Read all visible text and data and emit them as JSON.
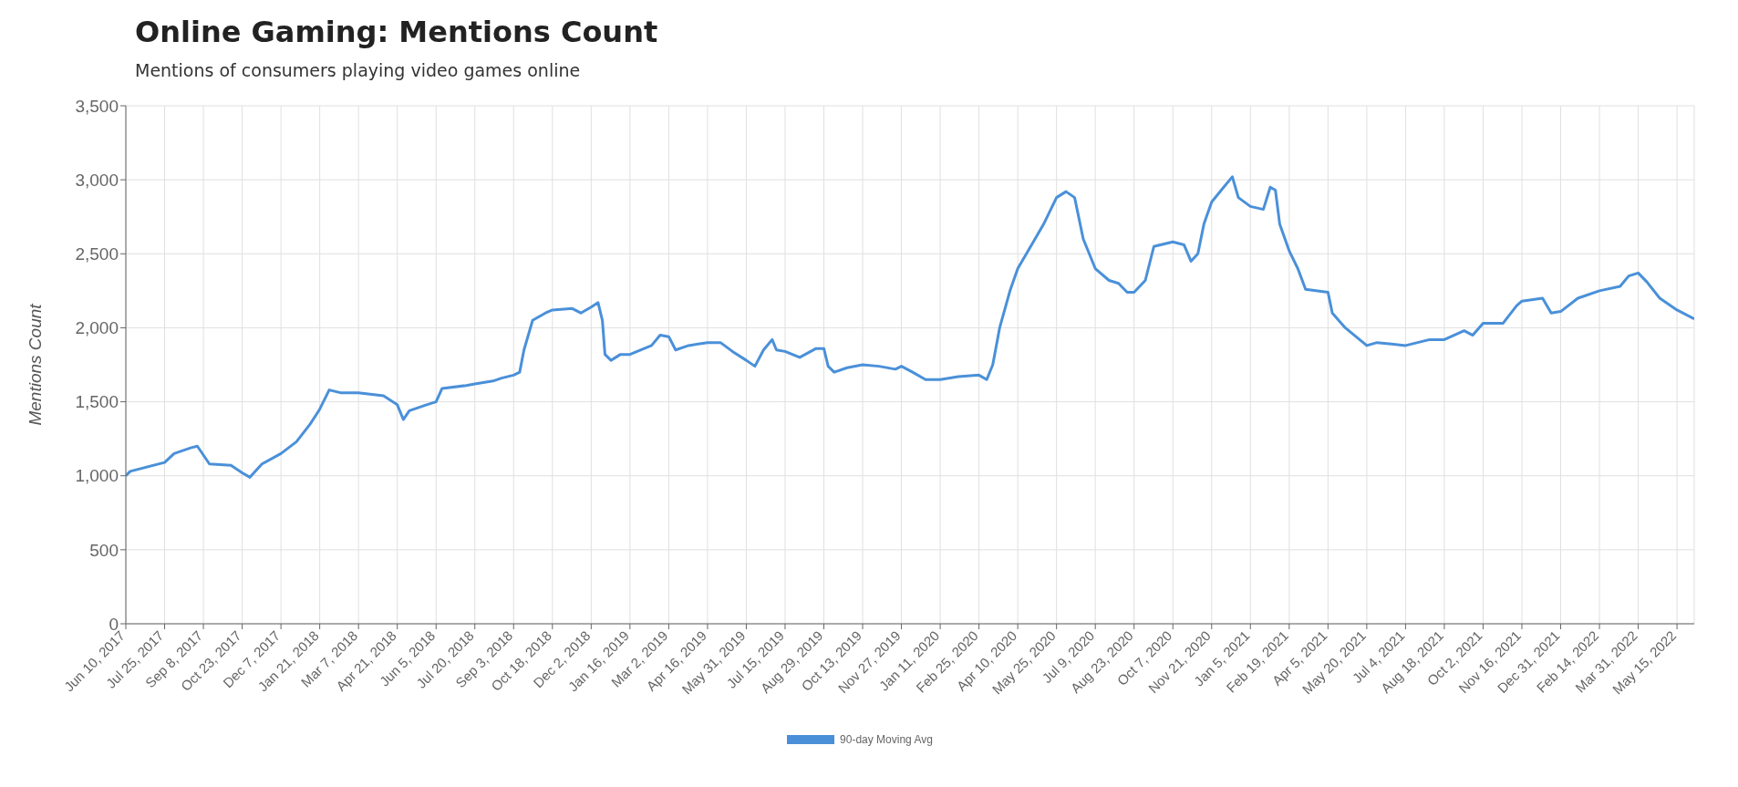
{
  "chart_data": {
    "type": "line",
    "title": "Online Gaming: Mentions Count",
    "subtitle": "Mentions of consumers playing video games online",
    "ylabel": "Mentions Count",
    "x": [
      "2017-06-10",
      "2017-06-15",
      "2017-07-25",
      "2017-08-05",
      "2017-08-25",
      "2017-09-01",
      "2017-09-15",
      "2017-10-10",
      "2017-10-23",
      "2017-11-01",
      "2017-11-15",
      "2017-12-07",
      "2017-12-25",
      "2018-01-10",
      "2018-01-21",
      "2018-02-01",
      "2018-02-15",
      "2018-03-07",
      "2018-04-05",
      "2018-04-21",
      "2018-04-28",
      "2018-05-05",
      "2018-05-25",
      "2018-06-05",
      "2018-06-12",
      "2018-07-10",
      "2018-07-20",
      "2018-08-10",
      "2018-08-20",
      "2018-09-03",
      "2018-09-10",
      "2018-09-15",
      "2018-09-25",
      "2018-10-10",
      "2018-10-18",
      "2018-11-10",
      "2018-11-20",
      "2018-12-02",
      "2018-12-10",
      "2018-12-15",
      "2018-12-18",
      "2018-12-25",
      "2019-01-05",
      "2019-01-16",
      "2019-02-10",
      "2019-02-20",
      "2019-03-02",
      "2019-03-10",
      "2019-03-25",
      "2019-04-16",
      "2019-05-01",
      "2019-05-15",
      "2019-05-31",
      "2019-06-10",
      "2019-06-20",
      "2019-06-30",
      "2019-07-05",
      "2019-07-15",
      "2019-08-01",
      "2019-08-20",
      "2019-08-29",
      "2019-09-03",
      "2019-09-10",
      "2019-09-25",
      "2019-10-13",
      "2019-11-01",
      "2019-11-20",
      "2019-11-27",
      "2019-12-10",
      "2019-12-25",
      "2020-01-11",
      "2020-02-01",
      "2020-02-25",
      "2020-03-05",
      "2020-03-12",
      "2020-03-20",
      "2020-04-01",
      "2020-04-10",
      "2020-04-25",
      "2020-05-10",
      "2020-05-25",
      "2020-06-05",
      "2020-06-15",
      "2020-06-25",
      "2020-07-09",
      "2020-07-25",
      "2020-08-05",
      "2020-08-15",
      "2020-08-23",
      "2020-09-05",
      "2020-09-15",
      "2020-10-07",
      "2020-10-20",
      "2020-10-28",
      "2020-11-05",
      "2020-11-12",
      "2020-11-21",
      "2020-12-05",
      "2020-12-15",
      "2020-12-22",
      "2021-01-05",
      "2021-01-20",
      "2021-01-28",
      "2021-02-03",
      "2021-02-08",
      "2021-02-19",
      "2021-03-01",
      "2021-03-10",
      "2021-04-05",
      "2021-04-10",
      "2021-04-25",
      "2021-05-20",
      "2021-06-01",
      "2021-07-04",
      "2021-08-01",
      "2021-08-18",
      "2021-09-10",
      "2021-09-20",
      "2021-10-02",
      "2021-10-25",
      "2021-11-10",
      "2021-11-16",
      "2021-12-10",
      "2021-12-20",
      "2021-12-31",
      "2022-01-20",
      "2022-02-14",
      "2022-03-10",
      "2022-03-20",
      "2022-03-31",
      "2022-04-10",
      "2022-04-25",
      "2022-05-15",
      "2022-06-04"
    ],
    "series": [
      {
        "name": "90-day Moving Avg",
        "color": "#4a90d9",
        "values": [
          1000,
          1030,
          1090,
          1150,
          1190,
          1200,
          1080,
          1070,
          1020,
          990,
          1080,
          1150,
          1230,
          1350,
          1450,
          1580,
          1560,
          1560,
          1540,
          1480,
          1380,
          1440,
          1480,
          1500,
          1590,
          1610,
          1620,
          1640,
          1660,
          1680,
          1700,
          1850,
          2050,
          2100,
          2120,
          2130,
          2100,
          2140,
          2170,
          2050,
          1820,
          1780,
          1820,
          1820,
          1880,
          1950,
          1940,
          1850,
          1880,
          1900,
          1900,
          1840,
          1780,
          1740,
          1850,
          1920,
          1850,
          1840,
          1800,
          1860,
          1860,
          1740,
          1700,
          1730,
          1750,
          1740,
          1720,
          1740,
          1700,
          1650,
          1650,
          1670,
          1680,
          1650,
          1750,
          2000,
          2250,
          2400,
          2550,
          2700,
          2880,
          2920,
          2880,
          2600,
          2400,
          2320,
          2300,
          2240,
          2240,
          2320,
          2550,
          2580,
          2560,
          2450,
          2500,
          2700,
          2850,
          2950,
          3020,
          2880,
          2820,
          2800,
          2950,
          2930,
          2700,
          2520,
          2400,
          2260,
          2240,
          2100,
          2000,
          1880,
          1900,
          1880,
          1920,
          1920,
          1980,
          1950,
          2030,
          2030,
          2150,
          2180,
          2200,
          2100,
          2110,
          2200,
          2250,
          2280,
          2350,
          2370,
          2310,
          2200,
          2120,
          2060
        ]
      }
    ],
    "xlim": [
      "2017-06-10",
      "2022-06-04"
    ],
    "xticks": [
      {
        "value": "2017-06-10",
        "label": "Jun 10, 2017"
      },
      {
        "value": "2017-07-25",
        "label": "Jul 25, 2017"
      },
      {
        "value": "2017-09-08",
        "label": "Sep 8, 2017"
      },
      {
        "value": "2017-10-23",
        "label": "Oct 23, 2017"
      },
      {
        "value": "2017-12-07",
        "label": "Dec 7, 2017"
      },
      {
        "value": "2018-01-21",
        "label": "Jan 21, 2018"
      },
      {
        "value": "2018-03-07",
        "label": "Mar 7, 2018"
      },
      {
        "value": "2018-04-21",
        "label": "Apr 21, 2018"
      },
      {
        "value": "2018-06-05",
        "label": "Jun 5, 2018"
      },
      {
        "value": "2018-07-20",
        "label": "Jul 20, 2018"
      },
      {
        "value": "2018-09-03",
        "label": "Sep 3, 2018"
      },
      {
        "value": "2018-10-18",
        "label": "Oct 18, 2018"
      },
      {
        "value": "2018-12-02",
        "label": "Dec 2, 2018"
      },
      {
        "value": "2019-01-16",
        "label": "Jan 16, 2019"
      },
      {
        "value": "2019-03-02",
        "label": "Mar 2, 2019"
      },
      {
        "value": "2019-04-16",
        "label": "Apr 16, 2019"
      },
      {
        "value": "2019-05-31",
        "label": "May 31, 2019"
      },
      {
        "value": "2019-07-15",
        "label": "Jul 15, 2019"
      },
      {
        "value": "2019-08-29",
        "label": "Aug 29, 2019"
      },
      {
        "value": "2019-10-13",
        "label": "Oct 13, 2019"
      },
      {
        "value": "2019-11-27",
        "label": "Nov 27, 2019"
      },
      {
        "value": "2020-01-11",
        "label": "Jan 11, 2020"
      },
      {
        "value": "2020-02-25",
        "label": "Feb 25, 2020"
      },
      {
        "value": "2020-04-10",
        "label": "Apr 10, 2020"
      },
      {
        "value": "2020-05-25",
        "label": "May 25, 2020"
      },
      {
        "value": "2020-07-09",
        "label": "Jul 9, 2020"
      },
      {
        "value": "2020-08-23",
        "label": "Aug 23, 2020"
      },
      {
        "value": "2020-10-07",
        "label": "Oct 7, 2020"
      },
      {
        "value": "2020-11-21",
        "label": "Nov 21, 2020"
      },
      {
        "value": "2021-01-05",
        "label": "Jan 5, 2021"
      },
      {
        "value": "2021-02-19",
        "label": "Feb 19, 2021"
      },
      {
        "value": "2021-04-05",
        "label": "Apr 5, 2021"
      },
      {
        "value": "2021-05-20",
        "label": "May 20, 2021"
      },
      {
        "value": "2021-07-04",
        "label": "Jul 4, 2021"
      },
      {
        "value": "2021-08-18",
        "label": "Aug 18, 2021"
      },
      {
        "value": "2021-10-02",
        "label": "Oct 2, 2021"
      },
      {
        "value": "2021-11-16",
        "label": "Nov 16, 2021"
      },
      {
        "value": "2021-12-31",
        "label": "Dec 31, 2021"
      },
      {
        "value": "2022-02-14",
        "label": "Feb 14, 2022"
      },
      {
        "value": "2022-03-31",
        "label": "Mar 31, 2022"
      },
      {
        "value": "2022-05-15",
        "label": "May 15, 2022"
      }
    ],
    "ylim": [
      0,
      3500
    ],
    "yticks": [
      0,
      500,
      {
        "value": 1000,
        "label": "1,000"
      },
      {
        "value": 1500,
        "label": "1,500"
      },
      {
        "value": 2000,
        "label": "2,000"
      },
      {
        "value": 2500,
        "label": "2,500"
      },
      {
        "value": 3000,
        "label": "3,000"
      },
      {
        "value": 3500,
        "label": "3,500"
      }
    ],
    "grid": true,
    "legend": "bottom",
    "marker": "none",
    "line_style": "solid"
  }
}
